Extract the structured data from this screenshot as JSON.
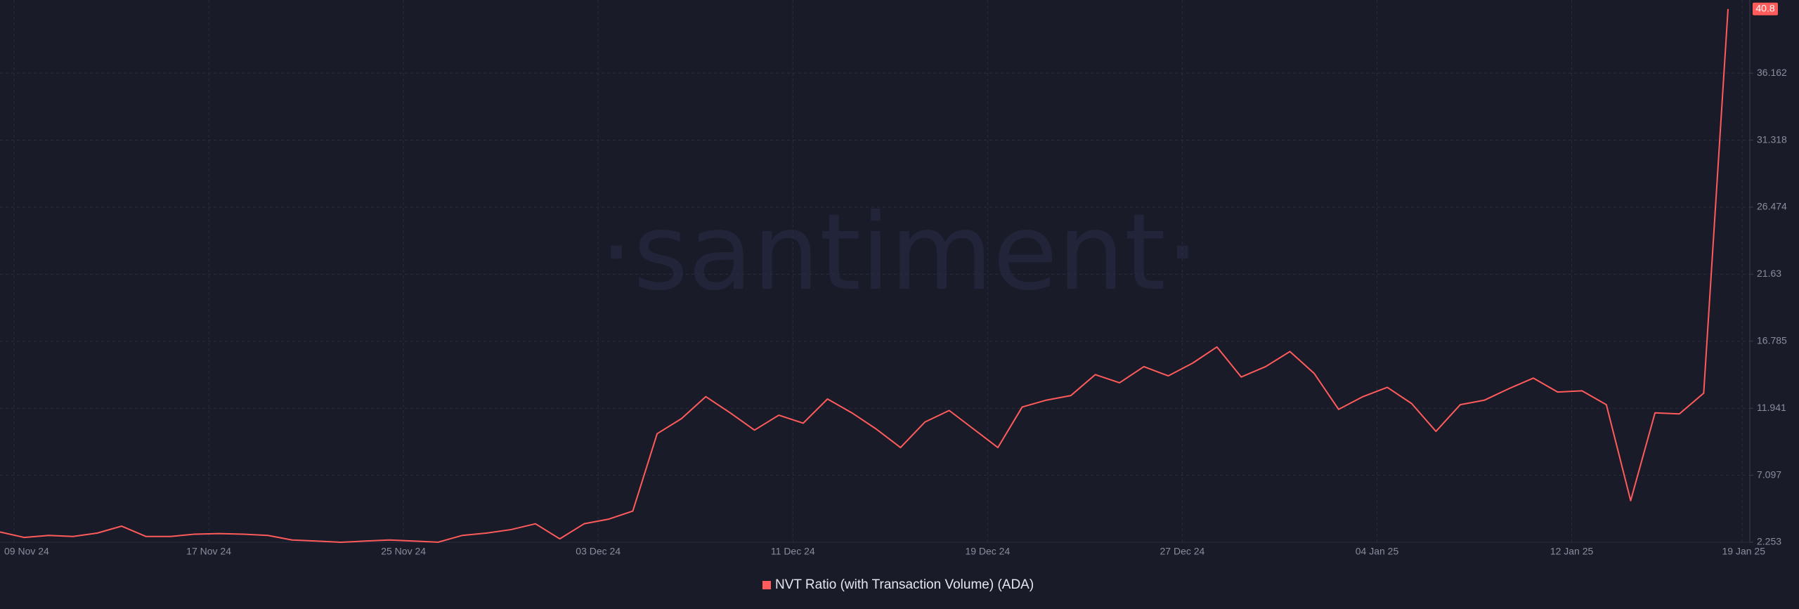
{
  "chart_data": {
    "type": "line",
    "watermark": "·santiment·",
    "categories": [
      "09 Nov 24",
      null,
      null,
      null,
      null,
      null,
      null,
      null,
      "17 Nov 24",
      null,
      null,
      null,
      null,
      null,
      null,
      null,
      "25 Nov 24",
      null,
      null,
      null,
      null,
      null,
      null,
      null,
      "03 Dec 24",
      null,
      null,
      null,
      null,
      null,
      null,
      null,
      "11 Dec 24",
      null,
      null,
      null,
      null,
      null,
      null,
      null,
      "19 Dec 24",
      null,
      null,
      null,
      null,
      null,
      null,
      null,
      "27 Dec 24",
      null,
      null,
      null,
      null,
      null,
      null,
      null,
      "04 Jan 25",
      null,
      null,
      null,
      null,
      null,
      null,
      null,
      "12 Jan 25",
      null,
      null,
      null,
      null,
      null,
      null,
      "19 Jan 25"
    ],
    "series": [
      {
        "name": "NVT Ratio (with Transaction Volume) (ADA)",
        "color": "#ff5b5b",
        "values": [
          3.0,
          2.6,
          2.75,
          2.67,
          2.92,
          3.42,
          2.67,
          2.67,
          2.84,
          2.88,
          2.84,
          2.75,
          2.42,
          2.34,
          2.25,
          2.34,
          2.42,
          2.34,
          2.26,
          2.75,
          2.92,
          3.17,
          3.59,
          2.5,
          3.59,
          3.92,
          4.51,
          10.1,
          11.19,
          12.78,
          11.61,
          10.36,
          11.44,
          10.86,
          12.61,
          11.61,
          10.44,
          9.1,
          10.94,
          11.78,
          10.44,
          9.1,
          12.03,
          12.53,
          12.86,
          14.37,
          13.78,
          14.95,
          14.28,
          15.2,
          16.37,
          14.2,
          14.95,
          16.04,
          14.45,
          11.86,
          12.78,
          13.45,
          12.28,
          10.27,
          12.2,
          12.53,
          13.36,
          14.12,
          13.11,
          13.2,
          12.2,
          5.26,
          11.61,
          11.53,
          13.03,
          40.8
        ]
      }
    ],
    "ylim": [
      2.253,
      41.45
    ],
    "yticks": [
      2.253,
      7.097,
      11.941,
      16.785,
      21.63,
      26.474,
      31.318,
      36.162
    ],
    "grid": true
  }
}
